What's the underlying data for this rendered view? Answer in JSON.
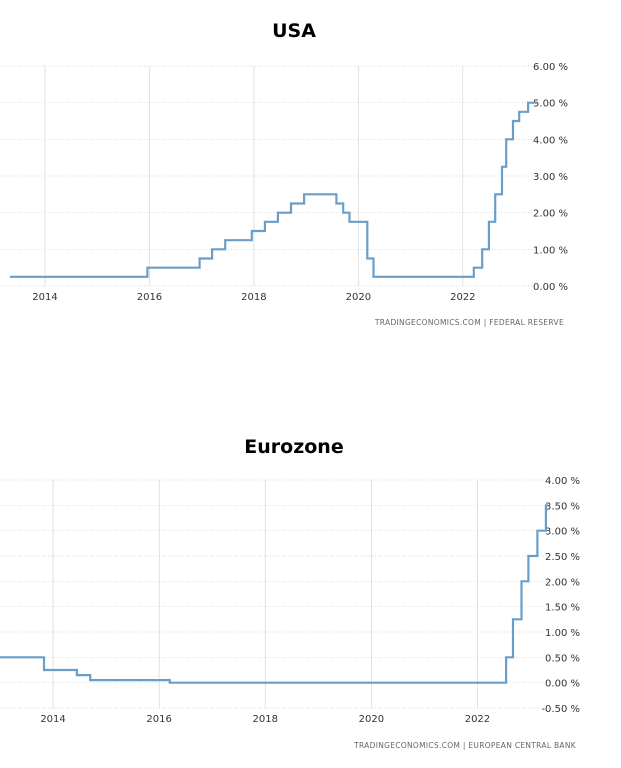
{
  "chart_data": [
    {
      "type": "line",
      "title": "USA",
      "source": "TRADINGECONOMICS.COM  |  FEDERAL RESERVE",
      "x_ticks": [
        2014,
        2016,
        2018,
        2020,
        2022
      ],
      "y_ticks": [
        "6.00 %",
        "5.00 %",
        "4.00 %",
        "3.00 %",
        "2.00 %",
        "1.00 %",
        "0.00 %"
      ],
      "ylim": [
        0,
        6
      ],
      "xlim": [
        2013.33,
        2023.42
      ],
      "grid": true,
      "series": [
        {
          "color": "#6a9ec8",
          "step_points": [
            [
              2013.33,
              0.25
            ],
            [
              2015.96,
              0.5
            ],
            [
              2016.96,
              0.75
            ],
            [
              2017.2,
              1.0
            ],
            [
              2017.45,
              1.25
            ],
            [
              2017.96,
              1.5
            ],
            [
              2018.21,
              1.75
            ],
            [
              2018.46,
              2.0
            ],
            [
              2018.71,
              2.25
            ],
            [
              2018.96,
              2.5
            ],
            [
              2019.58,
              2.25
            ],
            [
              2019.71,
              2.0
            ],
            [
              2019.83,
              1.75
            ],
            [
              2020.17,
              0.75
            ],
            [
              2020.29,
              0.25
            ],
            [
              2022.21,
              0.5
            ],
            [
              2022.37,
              1.0
            ],
            [
              2022.5,
              1.75
            ],
            [
              2022.62,
              2.5
            ],
            [
              2022.75,
              3.25
            ],
            [
              2022.83,
              4.0
            ],
            [
              2022.96,
              4.5
            ],
            [
              2023.08,
              4.75
            ],
            [
              2023.25,
              5.0
            ],
            [
              2023.42,
              5.0
            ]
          ]
        }
      ]
    },
    {
      "type": "line",
      "title": "Eurozone",
      "source": "TRADINGECONOMICS.COM  |  EUROPEAN CENTRAL BANK",
      "x_ticks": [
        2014,
        2016,
        2018,
        2020,
        2022
      ],
      "y_ticks": [
        "4.00 %",
        "3.50 %",
        "3.00 %",
        "2.50 %",
        "2.00 %",
        "1.50 %",
        "1.00 %",
        "0.50 %",
        "0.00 %",
        "-0.50 %"
      ],
      "ylim": [
        -0.5,
        4
      ],
      "xlim": [
        2013.0,
        2023.33
      ],
      "grid": true,
      "series": [
        {
          "color": "#6a9ec8",
          "step_points": [
            [
              2013.0,
              0.5
            ],
            [
              2013.83,
              0.25
            ],
            [
              2014.45,
              0.15
            ],
            [
              2014.7,
              0.05
            ],
            [
              2016.2,
              0.0
            ],
            [
              2022.54,
              0.5
            ],
            [
              2022.67,
              1.25
            ],
            [
              2022.83,
              2.0
            ],
            [
              2022.96,
              2.5
            ],
            [
              2023.13,
              3.0
            ],
            [
              2023.29,
              3.5
            ],
            [
              2023.33,
              3.5
            ]
          ]
        }
      ]
    }
  ]
}
